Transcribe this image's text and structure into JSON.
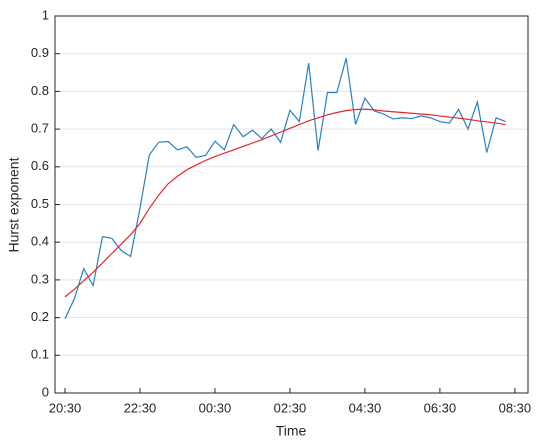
{
  "chart_data": {
    "type": "line",
    "x_label": "Time",
    "y_label": "Hurst exponent",
    "x": [
      "20:30",
      "20:45",
      "21:00",
      "21:15",
      "21:30",
      "21:45",
      "22:00",
      "22:15",
      "22:30",
      "22:45",
      "23:00",
      "23:15",
      "23:30",
      "23:45",
      "00:00",
      "00:15",
      "00:30",
      "00:45",
      "01:00",
      "01:15",
      "01:30",
      "01:45",
      "02:00",
      "02:15",
      "02:30",
      "02:45",
      "03:00",
      "03:15",
      "03:30",
      "03:45",
      "04:00",
      "04:15",
      "04:30",
      "04:45",
      "05:00",
      "05:15",
      "05:30",
      "05:45",
      "06:00",
      "06:15",
      "06:30",
      "06:45",
      "07:00",
      "07:15",
      "07:30",
      "07:45",
      "08:00",
      "08:15"
    ],
    "series": [
      {
        "color": "#2a7fc0",
        "values": [
          0.197,
          0.25,
          0.33,
          0.285,
          0.415,
          0.41,
          0.378,
          0.362,
          0.49,
          0.632,
          0.665,
          0.667,
          0.645,
          0.653,
          0.625,
          0.63,
          0.668,
          0.645,
          0.712,
          0.68,
          0.697,
          0.675,
          0.7,
          0.665,
          0.75,
          0.72,
          0.875,
          0.643,
          0.797,
          0.797,
          0.888,
          0.712,
          0.782,
          0.748,
          0.74,
          0.727,
          0.73,
          0.728,
          0.735,
          0.73,
          0.72,
          0.716,
          0.752,
          0.7,
          0.772,
          0.638,
          0.73,
          0.72
        ]
      },
      {
        "color": "#e8262b",
        "values": [
          0.255,
          0.275,
          0.298,
          0.32,
          0.345,
          0.37,
          0.395,
          0.42,
          0.45,
          0.49,
          0.525,
          0.555,
          0.575,
          0.592,
          0.605,
          0.617,
          0.627,
          0.636,
          0.645,
          0.654,
          0.663,
          0.672,
          0.682,
          0.692,
          0.702,
          0.712,
          0.722,
          0.73,
          0.738,
          0.744,
          0.749,
          0.752,
          0.753,
          0.751,
          0.748,
          0.746,
          0.744,
          0.742,
          0.74,
          0.738,
          0.735,
          0.732,
          0.729,
          0.726,
          0.722,
          0.719,
          0.716,
          0.712
        ]
      }
    ],
    "xlim": [
      "20:14",
      "08:51"
    ],
    "xticks": [
      "20:30",
      "22:30",
      "00:30",
      "02:30",
      "04:30",
      "06:30",
      "08:30"
    ],
    "ylim": [
      0,
      1
    ],
    "yticks": [
      0,
      0.1,
      0.2,
      0.3,
      0.4,
      0.5,
      0.6,
      0.7,
      0.8,
      0.9,
      1
    ],
    "grid": true
  }
}
